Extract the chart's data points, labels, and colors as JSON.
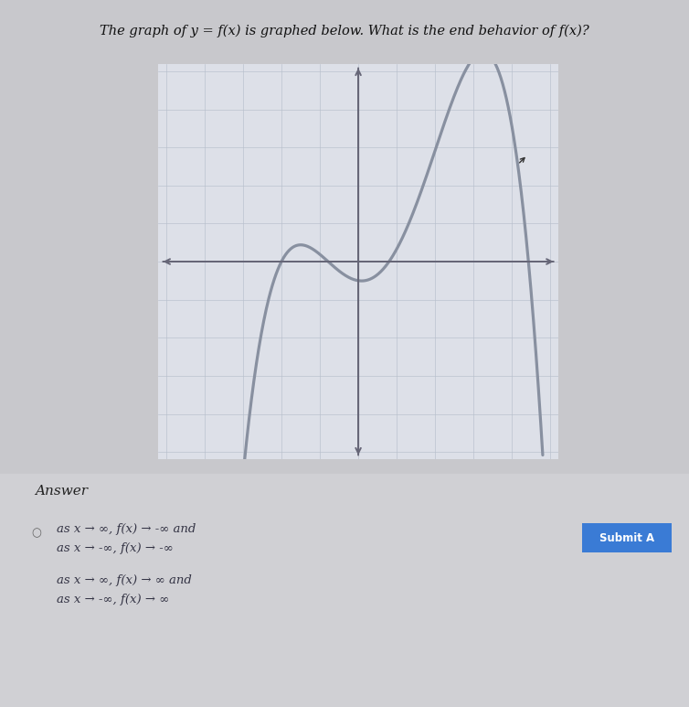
{
  "title": "The graph of y = f(x) is graphed below. What is the end behavior of f(x)?",
  "graph_bg": "#dde0e8",
  "grid_color": "#b8bfcc",
  "axis_color": "#666677",
  "curve_color": "#8890a0",
  "answer_label": "Answer",
  "answer_options": [
    [
      "as x → ∞, f(x) → -∞ and",
      "as x → -∞, f(x) → -∞"
    ],
    [
      "as x → ∞, f(x) → ∞ and",
      "as x → -∞, f(x) → ∞"
    ]
  ],
  "submit_color": "#3a7bd5",
  "page_bg": "#c8c8cc",
  "radio_color": "#666666",
  "text_color": "#333344"
}
